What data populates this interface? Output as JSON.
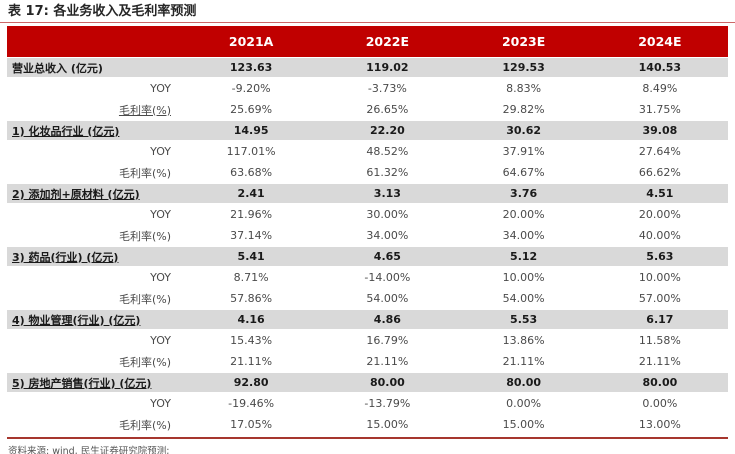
{
  "page": {
    "title": "表 17: 各业务收入及毛利率预测",
    "footer_source": "资料来源: wind, 民生证券研究院预测;"
  },
  "colors": {
    "header_bg": "#C00000",
    "section_row_bg": "#D9D9D9",
    "title_rule": "#CC6666",
    "source_rule": "#A6362E"
  },
  "chart_data": {
    "type": "table",
    "title": "表 17: 各业务收入及毛利率预测",
    "columns": [
      "2021A",
      "2022E",
      "2023E",
      "2024E"
    ],
    "rows": [
      {
        "label": "营业总收入 (亿元)",
        "style": "section",
        "underline": false,
        "values": [
          "123.63",
          "119.02",
          "129.53",
          "140.53"
        ]
      },
      {
        "label": "YOY",
        "style": "sub",
        "underline": false,
        "values": [
          "-9.20%",
          "-3.73%",
          "8.83%",
          "8.49%"
        ]
      },
      {
        "label": "毛利率(%)",
        "style": "sub",
        "underline": true,
        "values": [
          "25.69%",
          "26.65%",
          "29.82%",
          "31.75%"
        ]
      },
      {
        "label": "1) 化妆品行业 (亿元)",
        "style": "section",
        "underline": true,
        "values": [
          "14.95",
          "22.20",
          "30.62",
          "39.08"
        ]
      },
      {
        "label": "YOY",
        "style": "sub",
        "underline": false,
        "values": [
          "117.01%",
          "48.52%",
          "37.91%",
          "27.64%"
        ]
      },
      {
        "label": "毛利率(%)",
        "style": "sub",
        "underline": false,
        "values": [
          "63.68%",
          "61.32%",
          "64.67%",
          "66.62%"
        ]
      },
      {
        "label": "2) 添加剂+原材料 (亿元)",
        "style": "section",
        "underline": true,
        "values": [
          "2.41",
          "3.13",
          "3.76",
          "4.51"
        ]
      },
      {
        "label": "YOY",
        "style": "sub",
        "underline": false,
        "values": [
          "21.96%",
          "30.00%",
          "20.00%",
          "20.00%"
        ]
      },
      {
        "label": "毛利率(%)",
        "style": "sub",
        "underline": false,
        "values": [
          "37.14%",
          "34.00%",
          "34.00%",
          "40.00%"
        ]
      },
      {
        "label": "3) 药品(行业) (亿元)",
        "style": "section",
        "underline": true,
        "values": [
          "5.41",
          "4.65",
          "5.12",
          "5.63"
        ]
      },
      {
        "label": "YOY",
        "style": "sub",
        "underline": false,
        "values": [
          "8.71%",
          "-14.00%",
          "10.00%",
          "10.00%"
        ]
      },
      {
        "label": "毛利率(%)",
        "style": "sub",
        "underline": false,
        "values": [
          "57.86%",
          "54.00%",
          "54.00%",
          "57.00%"
        ]
      },
      {
        "label": "4) 物业管理(行业) (亿元)",
        "style": "section",
        "underline": true,
        "values": [
          "4.16",
          "4.86",
          "5.53",
          "6.17"
        ]
      },
      {
        "label": "YOY",
        "style": "sub",
        "underline": false,
        "values": [
          "15.43%",
          "16.79%",
          "13.86%",
          "11.58%"
        ]
      },
      {
        "label": "毛利率(%)",
        "style": "sub",
        "underline": false,
        "values": [
          "21.11%",
          "21.11%",
          "21.11%",
          "21.11%"
        ]
      },
      {
        "label": "5) 房地产销售(行业) (亿元)",
        "style": "section",
        "underline": true,
        "values": [
          "92.80",
          "80.00",
          "80.00",
          "80.00"
        ]
      },
      {
        "label": "YOY",
        "style": "sub",
        "underline": false,
        "values": [
          "-19.46%",
          "-13.79%",
          "0.00%",
          "0.00%"
        ]
      },
      {
        "label": "毛利率(%)",
        "style": "sub",
        "underline": false,
        "values": [
          "17.05%",
          "15.00%",
          "15.00%",
          "13.00%"
        ]
      }
    ]
  }
}
